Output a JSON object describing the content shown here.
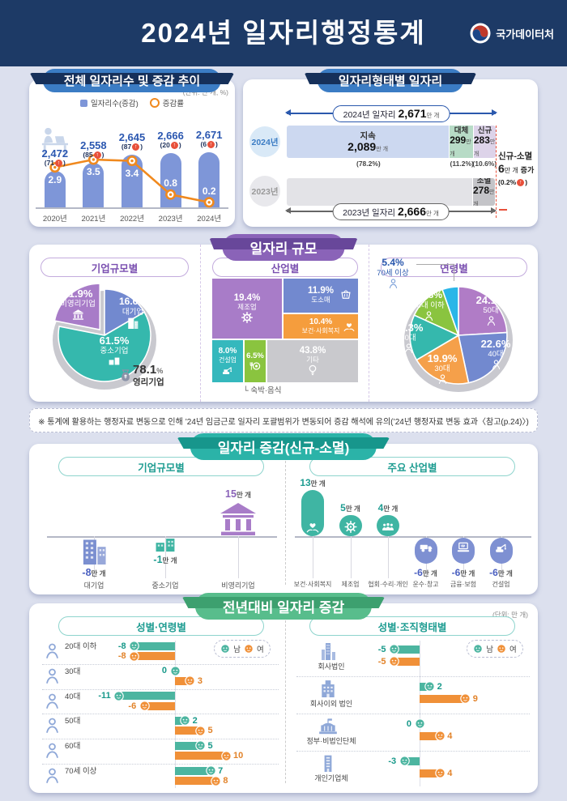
{
  "header": {
    "title": "2024년 일자리행정통계",
    "agency": "국가데이터처"
  },
  "note": "※ 통계에 활용하는 행정자료 변동으로 인해 ’24년 임금근로 일자리 포괄범위가 변동되어 증감 해석에 유의(’24년 행정자료 변동 효과〈참고(p.24)〉)",
  "panels": {
    "total": {
      "title": "전체 일자리수 및 증감 추이",
      "unit": "(단위: 만 개, %)",
      "legend_bar": "일자리수(증감)",
      "legend_line": "증감률"
    },
    "jobtype": {
      "title": "일자리형태별 일자리"
    },
    "scale": {
      "title": "일자리 규모",
      "sub_company": "기업규모별",
      "sub_industry": "산업별",
      "sub_age": "연령별"
    },
    "growth": {
      "title": "일자리 증감(신규-소멸)",
      "sub_company": "기업규모별",
      "sub_industry": "주요 산업별"
    },
    "yoy": {
      "title": "전년대비 일자리 증감",
      "unit": "(단위: 만 개)",
      "sub_age": "성별·연령별",
      "sub_org": "성별·조직형태별",
      "legend_male": "남",
      "legend_female": "여"
    }
  },
  "chart_data": [
    {
      "id": "total_jobs",
      "type": "bar",
      "title": "전체 일자리수 및 증감 추이",
      "unit": "만 개, %",
      "categories": [
        "2020년",
        "2021년",
        "2022년",
        "2023년",
        "2024년"
      ],
      "series": [
        {
          "name": "일자리수(증감)",
          "values": [
            2472,
            2558,
            2645,
            2666,
            2671
          ],
          "labels": [
            "2,472",
            "2,558",
            "2,645",
            "2,666",
            "2,671"
          ],
          "deltas": [
            "71",
            "85",
            "87",
            "20",
            "6"
          ]
        },
        {
          "name": "증감률",
          "type": "line",
          "values": [
            2.9,
            3.5,
            3.4,
            0.8,
            0.2
          ]
        }
      ],
      "bar_color": "#7e96d8",
      "line_color": "#f0891e"
    },
    {
      "id": "jobs_by_type",
      "type": "stacked-bar",
      "title": "일자리형태별 일자리",
      "total_2024": {
        "label": "2024년 일자리",
        "value": "2,671",
        "unit": "만 개"
      },
      "total_2023": {
        "label": "2023년 일자리",
        "value": "2,666",
        "unit": "만 개"
      },
      "year_2024": "2024년",
      "year_2023": "2023년",
      "segments_2024": [
        {
          "name": "지속",
          "value": "2,089",
          "unit": "만 개",
          "pct": "(78.2%)",
          "pct_num": 78.2,
          "color": "#ccd8f0"
        },
        {
          "name": "대체",
          "value": "299",
          "unit": "만 개",
          "pct": "(11.2%)",
          "pct_num": 11.2,
          "color": "#b7dbc6"
        },
        {
          "name": "신규",
          "value": "283",
          "unit": "만 개",
          "pct": "(10.6%)",
          "pct_num": 10.6,
          "color": "#ddd3e9"
        }
      ],
      "segment_2023": {
        "name": "소멸",
        "value": "278",
        "unit": "만 개",
        "pct_num": 10.4,
        "color": "#c4c4c8"
      },
      "annotation": {
        "title": "신규-소멸",
        "value": "6",
        "unit": "만 개",
        "suffix": "증가",
        "pct": "(0.2%",
        "pct_close": ")"
      }
    },
    {
      "id": "pie_company",
      "type": "pie",
      "title": "기업규모별",
      "slices": [
        {
          "label": "대기업",
          "pct": 16.6,
          "pct_label": "16.6%",
          "color": "#7289cf"
        },
        {
          "label": "중소기업",
          "pct": 61.5,
          "pct_label": "61.5%",
          "color": "#35b8ad"
        },
        {
          "label": "비영리기업",
          "pct": 21.9,
          "pct_label": "21.9%",
          "color": "#a87cc8",
          "exploded": true
        }
      ],
      "note": {
        "pct_label": "78.1",
        "pct_sign": "%",
        "label": "영리기업"
      }
    },
    {
      "id": "treemap_industry",
      "type": "treemap",
      "title": "산업별",
      "cells": [
        {
          "label": "제조업",
          "pct": 19.4,
          "pct_label": "19.4%",
          "color": "#a87cc8",
          "icon": "gear"
        },
        {
          "label": "도소매",
          "pct": 11.9,
          "pct_label": "11.9%",
          "color": "#7289cf",
          "icon": "basket"
        },
        {
          "label": "보건·사회복지",
          "pct": 10.4,
          "pct_label": "10.4%",
          "color": "#f59d3d",
          "icon": "hearthand"
        },
        {
          "label": "건설업",
          "pct": 8.0,
          "pct_label": "8.0%",
          "color": "#35b8bd",
          "icon": "crane"
        },
        {
          "label": "숙박·음식",
          "pct": 6.5,
          "pct_label": "6.5%",
          "color": "#8ac43f",
          "icon": "food"
        },
        {
          "label": "기타",
          "pct": 43.8,
          "pct_label": "43.8%",
          "color": "#c9c9cd",
          "icon": "bulb"
        }
      ],
      "callout": "숙박·음식"
    },
    {
      "id": "pie_age",
      "type": "pie",
      "title": "연령별",
      "slices": [
        {
          "label": "50대",
          "pct": 24.1,
          "pct_label": "24.1%",
          "color": "#b07cc6"
        },
        {
          "label": "40대",
          "pct": 22.6,
          "pct_label": "22.6%",
          "color": "#7289cf"
        },
        {
          "label": "30대",
          "pct": 19.9,
          "pct_label": "19.9%",
          "color": "#f5a04a"
        },
        {
          "label": "60대",
          "pct": 15.3,
          "pct_label": "15.3%",
          "color": "#35b8ad"
        },
        {
          "label": "20대 이하",
          "pct": 12.8,
          "pct_label": "12.8%",
          "color": "#8ac43f"
        },
        {
          "label": "70세 이상",
          "pct": 5.4,
          "pct_label": "5.4%",
          "color": "#29b6e8"
        }
      ]
    },
    {
      "id": "growth_by_company",
      "type": "bar",
      "title": "기업규모별",
      "unit": "만 개",
      "items": [
        {
          "label": "대기업",
          "value": -8,
          "icon": "building",
          "color": "#7b8fd0",
          "text_color": "#4a5fc0"
        },
        {
          "label": "중소기업",
          "value": -1,
          "icon": "smallco",
          "color": "#3fb5a3",
          "text_color": "#1f9d92"
        },
        {
          "label": "비영리기업",
          "value": 15,
          "icon": "bank",
          "color": "#a87cc8",
          "text_color": "#8a63b8"
        }
      ]
    },
    {
      "id": "growth_by_industry",
      "type": "bar",
      "title": "주요 산업별",
      "unit": "만 개",
      "pos_color": "#3fb5a3",
      "neg_color": "#7e90d2",
      "pos_text": "#1f9d92",
      "neg_text": "#4a5fc0",
      "items": [
        {
          "label": "보건·사회복지",
          "value": 13,
          "icon": "hearthand"
        },
        {
          "label": "제조업",
          "value": 5,
          "icon": "gear"
        },
        {
          "label": "협회·수리·개인",
          "value": 4,
          "icon": "people"
        },
        {
          "label": "운수·창고",
          "value": -6,
          "icon": "truck"
        },
        {
          "label": "금융·보험",
          "value": -6,
          "icon": "finance"
        },
        {
          "label": "건설업",
          "value": -6,
          "icon": "crane"
        }
      ]
    },
    {
      "id": "yoy_by_age",
      "type": "diverging-bar",
      "title": "성별·연령별",
      "unit": "만 개",
      "categories": [
        "20대 이하",
        "30대",
        "40대",
        "50대",
        "60대",
        "70세 이상"
      ],
      "series": [
        {
          "name": "남",
          "color": "#4cb5a0",
          "text_color": "#18998a",
          "values": [
            -8,
            0,
            -11,
            2,
            5,
            7
          ]
        },
        {
          "name": "여",
          "color": "#f09038",
          "text_color": "#e2832a",
          "values": [
            -8,
            3,
            -6,
            5,
            10,
            8
          ]
        }
      ]
    },
    {
      "id": "yoy_by_org",
      "type": "diverging-bar",
      "title": "성별·조직형태별",
      "unit": "만 개",
      "categories": [
        "회사법인",
        "회사이외 법인",
        "정부·비법인단체",
        "개인기업체"
      ],
      "icons": [
        "tower",
        "building2",
        "gov",
        "shop"
      ],
      "series": [
        {
          "name": "남",
          "color": "#4cb5a0",
          "text_color": "#18998a",
          "values": [
            -5,
            2,
            0,
            -3
          ]
        },
        {
          "name": "여",
          "color": "#f09038",
          "text_color": "#e2832a",
          "values": [
            -5,
            9,
            4,
            4
          ]
        }
      ]
    }
  ]
}
